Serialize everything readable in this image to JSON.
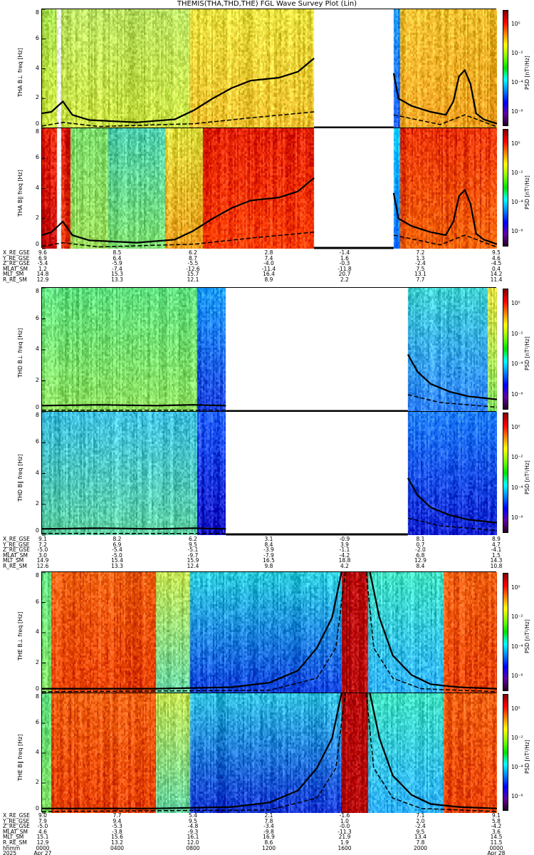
{
  "title": "THEMIS(THA,THD,THE) FGL Wave Survey Plot (Lin)",
  "chart_data": {
    "type": "heatmap",
    "xrange_hours": [
      0,
      24
    ],
    "ylim": [
      0,
      8
    ],
    "yticks": [
      "0",
      "2",
      "4",
      "6",
      "8"
    ],
    "colorbar": {
      "title": "PSD [nT²/Hz]",
      "ticks": [
        "10⁰",
        "10⁻²",
        "10⁻⁴",
        "10⁻⁶"
      ],
      "range_log10": [
        -7,
        1
      ]
    },
    "panels": [
      {
        "id": "tha-bperp",
        "ylabel": "THA B⊥ freq [Hz]",
        "segments": [
          [
            0,
            0.8,
            "#a8e050",
            "#d0e840"
          ],
          [
            0.8,
            1.0,
            "#ffffff",
            "#ffffff"
          ],
          [
            1.0,
            7.8,
            "#b8e060",
            "#c8e040"
          ],
          [
            7.8,
            14.35,
            "#e8e040",
            "#f0c030"
          ],
          [
            18.55,
            18.9,
            "#20a0ff",
            "#2060ff"
          ],
          [
            18.9,
            24,
            "#f0c030",
            "#f0a020"
          ]
        ],
        "gaps": [
          [
            14.35,
            18.55
          ]
        ],
        "solid": [
          [
            0,
            1.0
          ],
          [
            0.5,
            1.1
          ],
          [
            1.1,
            1.8
          ],
          [
            1.6,
            0.9
          ],
          [
            2.5,
            0.55
          ],
          [
            5,
            0.4
          ],
          [
            7,
            0.6
          ],
          [
            8,
            1.2
          ],
          [
            9,
            2.0
          ],
          [
            10,
            2.7
          ],
          [
            11,
            3.2
          ],
          [
            12.5,
            3.4
          ],
          [
            13.5,
            3.8
          ],
          [
            14.35,
            4.7
          ],
          null,
          [
            18.55,
            3.7
          ],
          [
            18.8,
            2.0
          ],
          [
            19.5,
            1.5
          ],
          [
            20.5,
            1.1
          ],
          [
            21.3,
            0.9
          ],
          [
            21.7,
            1.8
          ],
          [
            22,
            3.5
          ],
          [
            22.3,
            3.9
          ],
          [
            22.6,
            3.0
          ],
          [
            22.9,
            1.0
          ],
          [
            23.3,
            0.6
          ],
          [
            24,
            0.3
          ]
        ],
        "dashed": [
          [
            0,
            0.15
          ],
          [
            1.1,
            0.4
          ],
          [
            3,
            0.12
          ],
          [
            8,
            0.3
          ],
          [
            11,
            0.7
          ],
          [
            14.35,
            1.1
          ],
          null,
          [
            18.55,
            0.9
          ],
          [
            21,
            0.25
          ],
          [
            22.3,
            0.9
          ],
          [
            24,
            0.1
          ]
        ]
      },
      {
        "id": "tha-bpar",
        "ylabel": "THA B∥ freq [Hz]",
        "segments": [
          [
            0,
            0.8,
            "#e02000",
            "#c00000"
          ],
          [
            0.8,
            1.0,
            "#ffffff",
            "#ffffff"
          ],
          [
            1.0,
            1.5,
            "#d01000",
            "#e03000"
          ],
          [
            1.5,
            3.5,
            "#80e070",
            "#a0e060"
          ],
          [
            3.5,
            6.5,
            "#50d0b0",
            "#80e070"
          ],
          [
            6.5,
            8.5,
            "#e0e040",
            "#f0a020"
          ],
          [
            8.5,
            14.35,
            "#e02000",
            "#ff4000"
          ],
          [
            18.55,
            18.9,
            "#00c0ff",
            "#0060ff"
          ],
          [
            18.9,
            24,
            "#e83000",
            "#f06000"
          ]
        ],
        "gaps": [
          [
            14.35,
            18.55
          ]
        ],
        "solid": [
          [
            0,
            0.9
          ],
          [
            0.5,
            1.1
          ],
          [
            1.1,
            1.8
          ],
          [
            1.6,
            0.9
          ],
          [
            2.5,
            0.55
          ],
          [
            5,
            0.4
          ],
          [
            7,
            0.6
          ],
          [
            8,
            1.2
          ],
          [
            9,
            2.0
          ],
          [
            10,
            2.7
          ],
          [
            11,
            3.2
          ],
          [
            12.5,
            3.4
          ],
          [
            13.5,
            3.8
          ],
          [
            14.35,
            4.7
          ],
          null,
          [
            18.55,
            3.7
          ],
          [
            18.8,
            2.0
          ],
          [
            19.5,
            1.5
          ],
          [
            20.5,
            1.1
          ],
          [
            21.3,
            0.9
          ],
          [
            21.7,
            1.8
          ],
          [
            22,
            3.5
          ],
          [
            22.3,
            3.9
          ],
          [
            22.6,
            3.0
          ],
          [
            22.9,
            1.0
          ],
          [
            23.3,
            0.6
          ],
          [
            24,
            0.3
          ]
        ],
        "dashed": [
          [
            0,
            0.15
          ],
          [
            1.1,
            0.4
          ],
          [
            3,
            0.12
          ],
          [
            8,
            0.3
          ],
          [
            11,
            0.7
          ],
          [
            14.35,
            1.1
          ],
          null,
          [
            18.55,
            0.9
          ],
          [
            21,
            0.25
          ],
          [
            22.3,
            0.9
          ],
          [
            24,
            0.1
          ]
        ]
      },
      {
        "id": "thd-bperp",
        "ylabel": "THD B⊥ freq [Hz]",
        "segments": [
          [
            0,
            8.2,
            "#60e080",
            "#90e060"
          ],
          [
            8.2,
            9.7,
            "#20a0ff",
            "#2040e0"
          ],
          [
            19.3,
            23.5,
            "#40d0d0",
            "#3080ff"
          ],
          [
            23.5,
            24,
            "#e0e040",
            "#80e060"
          ]
        ],
        "gaps": [
          [
            9.7,
            19.3
          ]
        ],
        "solid": [
          [
            0,
            0.4
          ],
          [
            3,
            0.45
          ],
          [
            6,
            0.4
          ],
          [
            8,
            0.45
          ],
          [
            9.7,
            0.4
          ],
          null,
          [
            19.3,
            3.7
          ],
          [
            19.8,
            2.6
          ],
          [
            20.5,
            1.8
          ],
          [
            21.5,
            1.3
          ],
          [
            22.5,
            1.0
          ],
          [
            24,
            0.8
          ]
        ],
        "dashed": [
          [
            0,
            0.1
          ],
          [
            9.7,
            0.1
          ],
          null,
          [
            19.3,
            1.1
          ],
          [
            21,
            0.6
          ],
          [
            24,
            0.3
          ]
        ]
      },
      {
        "id": "thd-bpar",
        "ylabel": "THD B∥ freq [Hz]",
        "segments": [
          [
            0,
            8.2,
            "#40c0e0",
            "#60d0a0"
          ],
          [
            8.2,
            9.7,
            "#2060ff",
            "#1010c0"
          ],
          [
            19.3,
            24,
            "#2080ff",
            "#1020d0"
          ]
        ],
        "gaps": [
          [
            9.7,
            19.3
          ]
        ],
        "solid": [
          [
            0,
            0.4
          ],
          [
            3,
            0.45
          ],
          [
            6,
            0.4
          ],
          [
            8,
            0.45
          ],
          [
            9.7,
            0.4
          ],
          null,
          [
            19.3,
            3.7
          ],
          [
            19.8,
            2.6
          ],
          [
            20.5,
            1.8
          ],
          [
            21.5,
            1.3
          ],
          [
            22.5,
            1.0
          ],
          [
            24,
            0.8
          ]
        ],
        "dashed": [
          [
            0,
            0.1
          ],
          [
            9.7,
            0.1
          ],
          null,
          [
            19.3,
            1.1
          ],
          [
            21,
            0.6
          ],
          [
            24,
            0.3
          ]
        ]
      },
      {
        "id": "the-bperp",
        "ylabel": "THE B⊥ freq [Hz]",
        "segments": [
          [
            0,
            0.5,
            "#60e080",
            "#80e060"
          ],
          [
            0.5,
            6,
            "#f06010",
            "#e84000"
          ],
          [
            6,
            7.8,
            "#c0e050",
            "#60d0a0"
          ],
          [
            7.8,
            15.8,
            "#30d0e0",
            "#1040e0"
          ],
          [
            15.8,
            17.2,
            "#b00000",
            "#b00000"
          ],
          [
            17.2,
            21.2,
            "#40e0c0",
            "#30b0ff"
          ],
          [
            21.2,
            24,
            "#f06010",
            "#e84000"
          ]
        ],
        "gaps": [],
        "solid": [
          [
            0,
            0.3
          ],
          [
            6,
            0.3
          ],
          [
            10,
            0.4
          ],
          [
            12,
            0.7
          ],
          [
            13.5,
            1.5
          ],
          [
            14.5,
            3
          ],
          [
            15.3,
            5
          ],
          [
            15.8,
            8
          ],
          null,
          [
            17.3,
            8
          ],
          [
            17.8,
            5
          ],
          [
            18.5,
            2.5
          ],
          [
            19.5,
            1.2
          ],
          [
            20.5,
            0.6
          ],
          [
            22,
            0.4
          ],
          [
            24,
            0.3
          ]
        ],
        "dashed": [
          [
            0,
            0.1
          ],
          [
            12,
            0.2
          ],
          [
            14.5,
            1
          ],
          [
            15.5,
            3
          ],
          [
            16,
            8
          ],
          null,
          [
            17.1,
            8
          ],
          [
            17.5,
            3
          ],
          [
            18.5,
            1
          ],
          [
            20,
            0.3
          ],
          [
            24,
            0.1
          ]
        ]
      },
      {
        "id": "the-bpar",
        "ylabel": "THE B∥ freq [Hz]",
        "segments": [
          [
            0,
            0.5,
            "#60e080",
            "#80e060"
          ],
          [
            0.5,
            6,
            "#f06010",
            "#e84000"
          ],
          [
            6,
            7.8,
            "#c0e050",
            "#60d0a0"
          ],
          [
            7.8,
            15.8,
            "#30c0e0",
            "#1030d0"
          ],
          [
            15.8,
            17.2,
            "#b00000",
            "#b00000"
          ],
          [
            17.2,
            21.2,
            "#40e0c0",
            "#30b0ff"
          ],
          [
            21.2,
            24,
            "#f06010",
            "#e84000"
          ]
        ],
        "gaps": [],
        "solid": [
          [
            0,
            0.3
          ],
          [
            6,
            0.3
          ],
          [
            10,
            0.4
          ],
          [
            12,
            0.7
          ],
          [
            13.5,
            1.5
          ],
          [
            14.5,
            3
          ],
          [
            15.3,
            5
          ],
          [
            15.8,
            8
          ],
          null,
          [
            17.3,
            8
          ],
          [
            17.8,
            5
          ],
          [
            18.5,
            2.5
          ],
          [
            19.5,
            1.2
          ],
          [
            20.5,
            0.6
          ],
          [
            22,
            0.4
          ],
          [
            24,
            0.3
          ]
        ],
        "dashed": [
          [
            0,
            0.1
          ],
          [
            12,
            0.2
          ],
          [
            14.5,
            1
          ],
          [
            15.5,
            3
          ],
          [
            16,
            8
          ],
          null,
          [
            17.1,
            8
          ],
          [
            17.5,
            3
          ],
          [
            18.5,
            1
          ],
          [
            20,
            0.3
          ],
          [
            24,
            0.1
          ]
        ]
      }
    ]
  },
  "ephemeris": [
    {
      "rows": [
        [
          "X_RE_GSE",
          "9.6",
          "8.5",
          "6.2",
          "2.8",
          "-1.4",
          "7.2",
          "9.5"
        ],
        [
          "Y_RE_GSE",
          "6.9",
          "6.4",
          "8.7",
          "7.4",
          "1.6",
          "1.3",
          "4.6"
        ],
        [
          "Z_RE_GSE",
          "-5.4",
          "-5.9",
          "-5.5",
          "-4.0",
          "-0.3",
          "-2.4",
          "-4.5"
        ],
        [
          "MLAT_SM",
          "1.2",
          "-7.4",
          "-12.6",
          "-11.4",
          "-11.8",
          "7.5",
          "0.4"
        ],
        [
          "MLT_SM",
          "14.8",
          "15.3",
          "15.7",
          "16.4",
          "20.7",
          "13.1",
          "14.2"
        ],
        [
          "R_RE_SM",
          "12.9",
          "13.3",
          "12.1",
          "8.9",
          "2.2",
          "7.7",
          "11.4"
        ]
      ]
    },
    {
      "rows": [
        [
          "X_RE_GSE",
          "9.1",
          "8.2",
          "6.2",
          "3.1",
          "-0.9",
          "8.1",
          "8.9"
        ],
        [
          "Y_RE_GSE",
          "7.2",
          "6.9",
          "9.5",
          "8.4",
          "3.9",
          "0.7",
          "4.7"
        ],
        [
          "Z_RE_GSE",
          "-5.0",
          "-5.4",
          "-5.1",
          "-3.9",
          "-1.1",
          "-2.0",
          "-4.1"
        ],
        [
          "MLAT_SM",
          "3.0",
          "-5.0",
          "-9.7",
          "-7.9",
          "-4.2",
          "6.8",
          "1.5"
        ],
        [
          "MLT_SM",
          "14.9",
          "15.4",
          "15.9",
          "16.5",
          "18.8",
          "12.9",
          "14.3"
        ],
        [
          "R_RE_SM",
          "12.6",
          "13.3",
          "12.4",
          "9.8",
          "4.2",
          "8.4",
          "10.8"
        ]
      ]
    },
    {
      "rows": [
        [
          "X_RE_GSE",
          "9.0",
          "7.7",
          "5.4",
          "2.1",
          "-1.6",
          "7.1",
          "9.1"
        ],
        [
          "Y_RE_GSE",
          "7.9",
          "9.4",
          "9.5",
          "7.8",
          "1.0",
          "2.0",
          "5.8"
        ],
        [
          "Z_RE_GSE",
          "-5.0",
          "-5.3",
          "-4.8",
          "-3.4",
          "-0.0",
          "-2.4",
          "-4.2"
        ],
        [
          "MLAT_SM",
          "4.6",
          "-3.8",
          "-9.3",
          "-9.8",
          "-11.3",
          "9.5",
          "3.6"
        ],
        [
          "MLT_SM",
          "15.1",
          "15.6",
          "16.1",
          "16.9",
          "21.9",
          "13.4",
          "14.5"
        ],
        [
          "R_RE_SM",
          "12.9",
          "13.2",
          "12.0",
          "8.6",
          "1.9",
          "7.8",
          "11.5"
        ],
        [
          "hhmm",
          "0000",
          "0400",
          "0800",
          "1200",
          "1600",
          "2000",
          "0000"
        ],
        [
          "2025",
          "Apr 27",
          "",
          "",
          "",
          "",
          "",
          "Apr 28"
        ]
      ]
    }
  ]
}
